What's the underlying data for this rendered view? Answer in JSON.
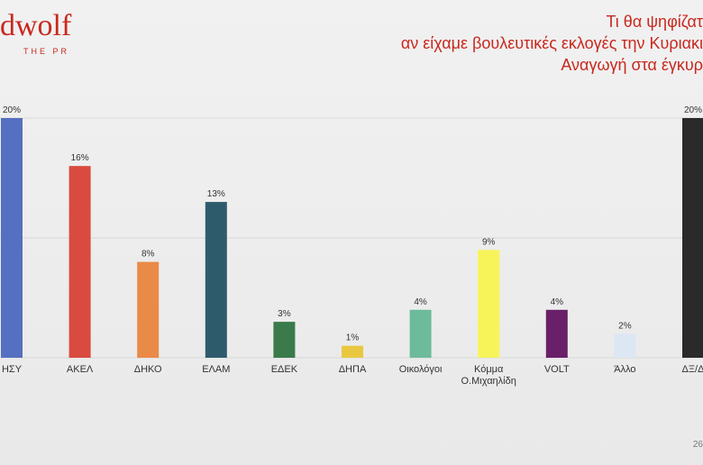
{
  "chart_data": {
    "type": "bar",
    "logo": "dwolf",
    "logo_sub": "THE PR",
    "title_lines": [
      "Τι θα ψηφίζατ",
      "αν είχαμε βουλευτικές εκλογές την Κυριακι",
      "Αναγωγή στα έγκυρ"
    ],
    "categories": [
      "ΗΣΥ",
      "ΑΚΕΛ",
      "ΔΗΚΟ",
      "ΕΛΑΜ",
      "ΕΔΕΚ",
      "ΔΗΠΑ",
      "Οικολόγοι",
      "Κόμμα\nΟ.Μιχαηλίδη",
      "VOLT",
      "Άλλο",
      "ΔΞ/Δ"
    ],
    "values": [
      20,
      16,
      8,
      13,
      3,
      1,
      4,
      9,
      4,
      2,
      20
    ],
    "value_labels": [
      "20%",
      "16%",
      "8%",
      "13%",
      "3%",
      "1%",
      "4%",
      "9%",
      "4%",
      "2%",
      "20%"
    ],
    "colors": [
      "#5570c0",
      "#d94b3f",
      "#ea8a47",
      "#2e5b6c",
      "#3b7a4a",
      "#e9c840",
      "#6dbb9a",
      "#f7f45a",
      "#6a2068",
      "#dde7f3",
      "#2a2a2a"
    ],
    "ylim": [
      0,
      20
    ],
    "yticks": [
      0,
      10,
      20
    ],
    "grid": true,
    "page_number": "26"
  }
}
